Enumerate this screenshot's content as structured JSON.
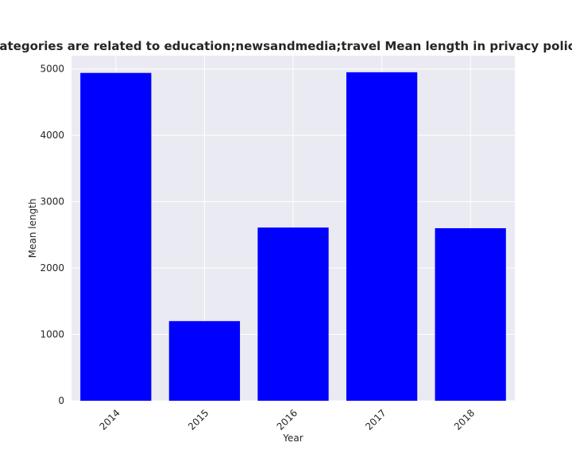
{
  "chart_data": {
    "type": "bar",
    "title": "en categories are related to education;newsandmedia;travel Mean length in privacy policies by",
    "xlabel": "Year",
    "ylabel": "Mean length",
    "categories": [
      "2014",
      "2015",
      "2016",
      "2017",
      "2018"
    ],
    "values": [
      4940,
      1200,
      2610,
      4950,
      2600
    ],
    "ylim": [
      0,
      5200
    ],
    "yticks": [
      "0",
      "1000",
      "2000",
      "3000",
      "4000",
      "5000"
    ],
    "grid": true,
    "bar_color": "#0000ff",
    "background_color": "#eaeaf2",
    "grid_color": "#ffffff"
  }
}
